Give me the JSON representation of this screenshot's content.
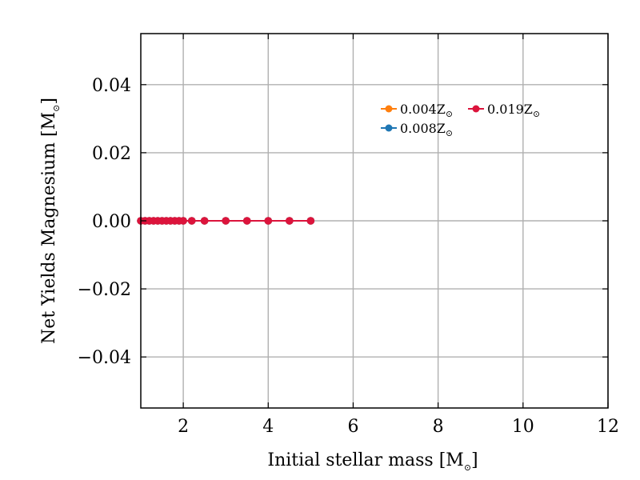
{
  "chart_data": {
    "type": "line",
    "title": "",
    "xlabel": "Initial stellar mass [M",
    "xlabel_sub": "⊙",
    "xlabel_close": "]",
    "ylabel": "Net Yields Magnesium [M",
    "ylabel_sub": "⊙",
    "ylabel_close": "]",
    "xlim": [
      1,
      12
    ],
    "ylim": [
      -0.055,
      0.055
    ],
    "xticks": [
      2,
      4,
      6,
      8,
      10,
      12
    ],
    "xtick_labels": [
      "2",
      "4",
      "6",
      "8",
      "10",
      "12"
    ],
    "yticks": [
      -0.04,
      -0.02,
      0.0,
      0.02,
      0.04
    ],
    "ytick_labels": [
      "−0.04",
      "−0.02",
      "0.00",
      "0.02",
      "0.04"
    ],
    "grid": true,
    "legend_position": "upper-right",
    "series": [
      {
        "name": "0.004Z",
        "name_sub": "⊙",
        "color": "#ff7f0e",
        "x": [
          1.0,
          1.1,
          1.2,
          1.3,
          1.4,
          1.5,
          1.6,
          1.7,
          1.8,
          1.9,
          2.0,
          2.2,
          2.5,
          3.0,
          3.5,
          4.0,
          4.5,
          5.0
        ],
        "y": [
          0,
          0,
          0,
          0,
          0,
          0,
          0,
          0,
          0,
          0,
          0,
          0,
          0,
          0,
          0,
          0,
          0,
          0
        ]
      },
      {
        "name": "0.008Z",
        "name_sub": "⊙",
        "color": "#1f77b4",
        "x": [
          1.0,
          1.1,
          1.2,
          1.3,
          1.4,
          1.5,
          1.6,
          1.7,
          1.8,
          1.9,
          2.0,
          2.2,
          2.5,
          3.0,
          3.5,
          4.0,
          4.5,
          5.0
        ],
        "y": [
          0,
          0,
          0,
          0,
          0,
          0,
          0,
          0,
          0,
          0,
          0,
          0,
          0,
          0,
          0,
          0,
          0,
          0
        ]
      },
      {
        "name": "0.019Z",
        "name_sub": "⊙",
        "color": "#dc143c",
        "x": [
          1.0,
          1.1,
          1.2,
          1.3,
          1.4,
          1.5,
          1.6,
          1.7,
          1.8,
          1.9,
          2.0,
          2.2,
          2.5,
          3.0,
          3.5,
          4.0,
          4.5,
          5.0
        ],
        "y": [
          0,
          0,
          0,
          0,
          0,
          0,
          0,
          0,
          0,
          0,
          0,
          0,
          0,
          0,
          0,
          0,
          0,
          0
        ]
      }
    ]
  }
}
